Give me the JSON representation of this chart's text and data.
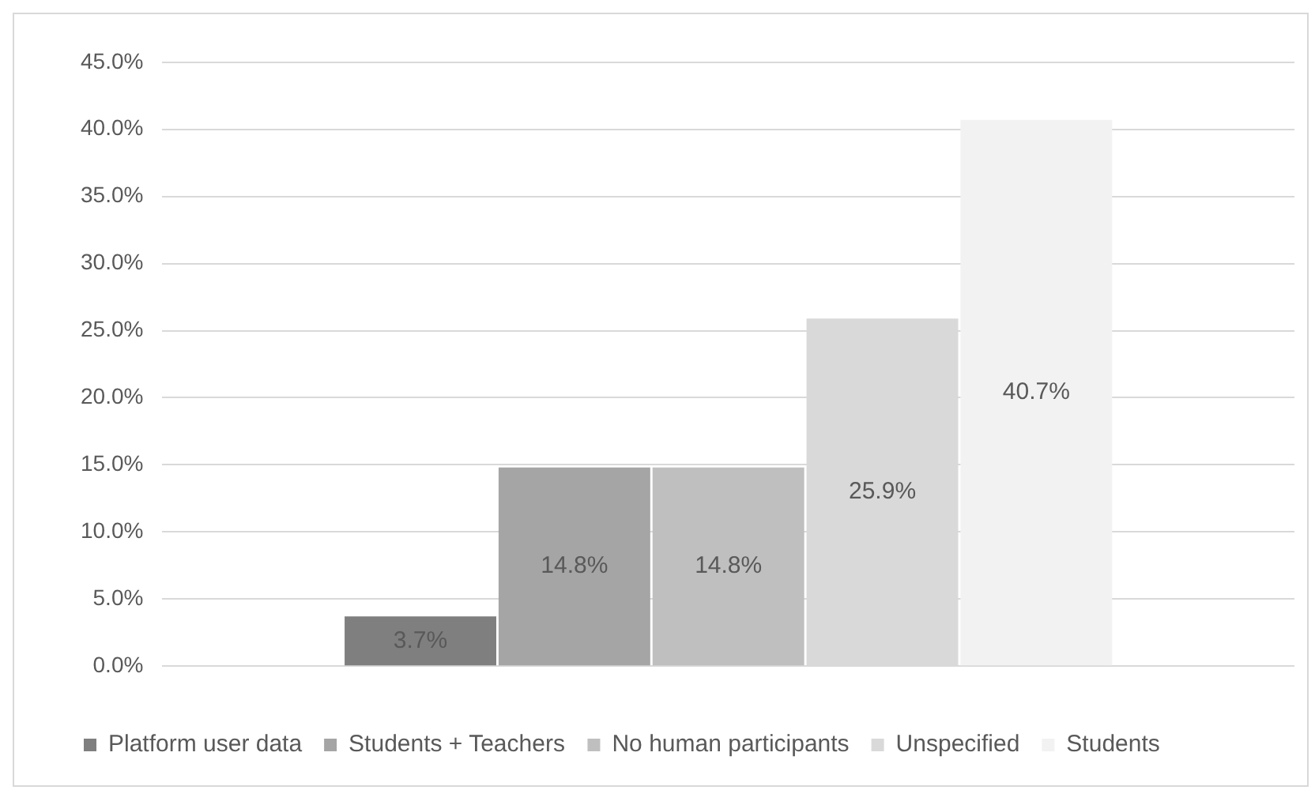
{
  "chart_data": {
    "type": "bar",
    "categories": [
      null
    ],
    "series": [
      {
        "name": "Platform user data",
        "color": "#7f7f7f",
        "values": [
          3.7
        ],
        "value_labels": [
          "3.7%"
        ]
      },
      {
        "name": "Students + Teachers",
        "color": "#a5a5a5",
        "values": [
          14.8
        ],
        "value_labels": [
          "14.8%"
        ]
      },
      {
        "name": "No human participants",
        "color": "#bfbfbf",
        "values": [
          14.8
        ],
        "value_labels": [
          "14.8%"
        ]
      },
      {
        "name": "Unspecified",
        "color": "#d9d9d9",
        "values": [
          25.9
        ],
        "value_labels": [
          "25.9%"
        ]
      },
      {
        "name": "Students",
        "color": "#f2f2f2",
        "values": [
          40.7
        ],
        "value_labels": [
          "40.7%"
        ]
      }
    ],
    "ylim": [
      0,
      45
    ],
    "yticks": [
      {
        "value": 0,
        "label": "0.0%"
      },
      {
        "value": 5,
        "label": "5.0%"
      },
      {
        "value": 10,
        "label": "10.0%"
      },
      {
        "value": 15,
        "label": "15.0%"
      },
      {
        "value": 20,
        "label": "20.0%"
      },
      {
        "value": 25,
        "label": "25.0%"
      },
      {
        "value": 30,
        "label": "30.0%"
      },
      {
        "value": 35,
        "label": "35.0%"
      },
      {
        "value": 40,
        "label": "40.0%"
      },
      {
        "value": 45,
        "label": "45.0%"
      }
    ],
    "grid": "y",
    "legend": "bottom"
  }
}
